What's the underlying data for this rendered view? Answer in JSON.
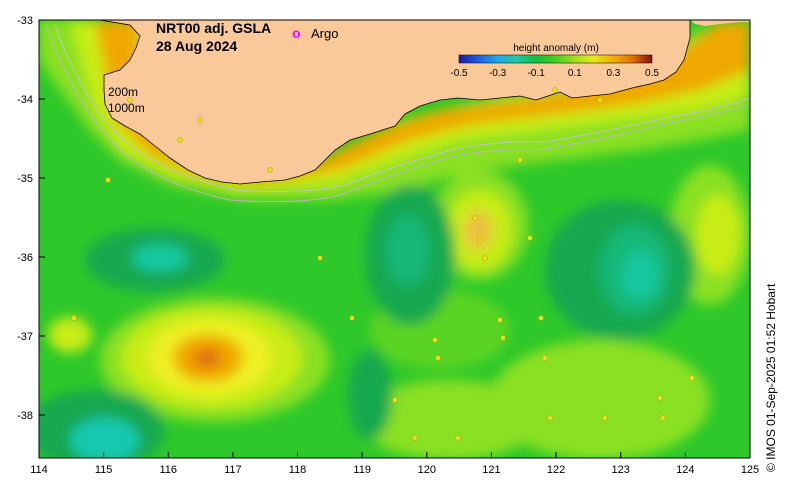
{
  "map": {
    "title_line1": "NRT00 adj. GSLA",
    "title_line2": "28 Aug 2024",
    "argo_symbol": "o",
    "argo_label": "Argo",
    "argo_color": "#ff00ff",
    "contour_200m": "200m",
    "contour_1000m": "1000m",
    "credit": "© IMOS 01-Sep-2025 01:52 Hobart",
    "x_ticks": [
      "114",
      "115",
      "116",
      "117",
      "118",
      "119",
      "120",
      "121",
      "122",
      "123",
      "124",
      "125"
    ],
    "y_ticks": [
      "-33",
      "-34",
      "-35",
      "-36",
      "-37",
      "-38"
    ],
    "land_color": "#f9c99a",
    "colorbar": {
      "title": "height anomaly (m)",
      "ticks": [
        "-0.5",
        "-0.3",
        "-0.1",
        "0.1",
        "0.3",
        "0.5"
      ],
      "colors": [
        "#1a1aa0",
        "#1e5ee0",
        "#1ea8e8",
        "#20c8a8",
        "#10c040",
        "#40d020",
        "#a0e020",
        "#e8e820",
        "#f0b000",
        "#e07000",
        "#c02000",
        "#801010"
      ]
    },
    "anomaly_colors": {
      "base_green": "#2ec82a",
      "light_green": "#8ae020",
      "yellow_green": "#c8ec18",
      "yellow": "#eef020",
      "orange": "#f0a800",
      "dark_orange": "#e07008",
      "teal": "#18b878",
      "cyan": "#18c8b0",
      "dark_green": "#12a850"
    }
  }
}
